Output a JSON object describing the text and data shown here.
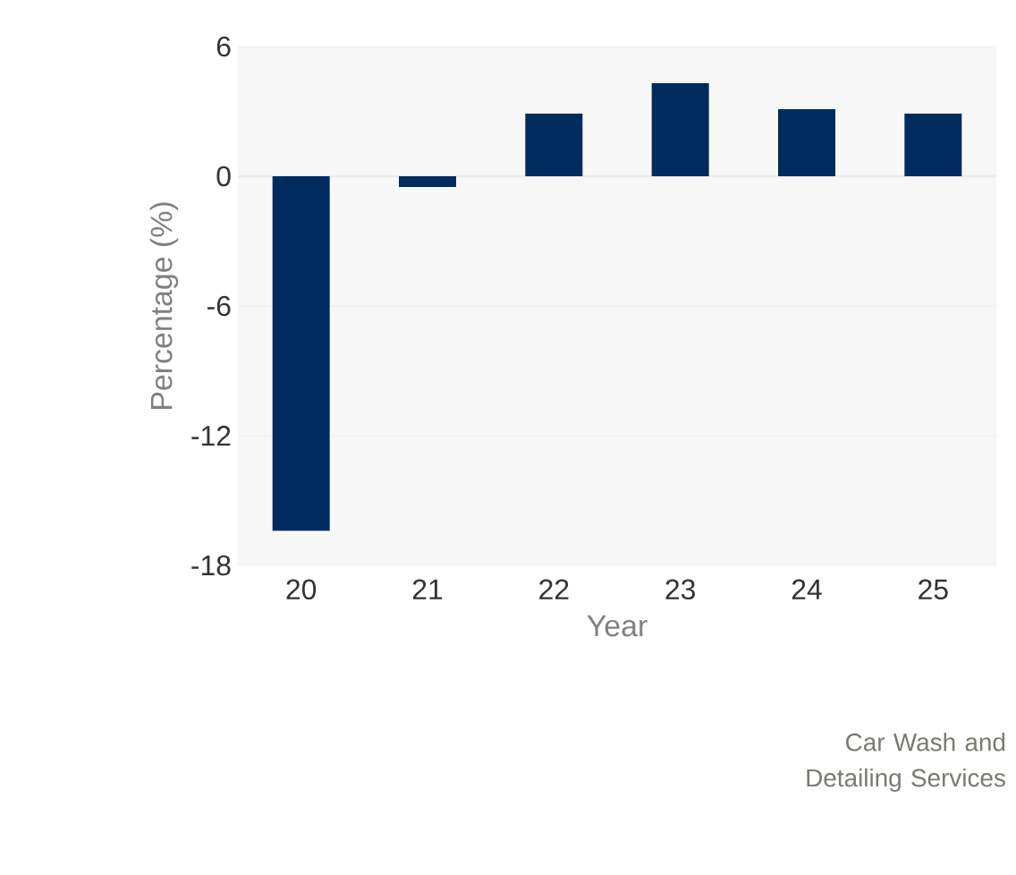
{
  "chart_data": {
    "type": "bar",
    "xlabel": "Year",
    "ylabel": "Percentage (%)",
    "categories": [
      "20",
      "21",
      "22",
      "23",
      "24",
      "25"
    ],
    "values": [
      -16.4,
      -0.5,
      2.9,
      4.3,
      3.1,
      2.9
    ],
    "color": "#002b5f",
    "ylim": [
      -18,
      6
    ],
    "yticks": [
      -18,
      -12,
      -6,
      0,
      6
    ],
    "grid": "y",
    "annotations": [
      "Car Wash and Detailing Services"
    ]
  }
}
